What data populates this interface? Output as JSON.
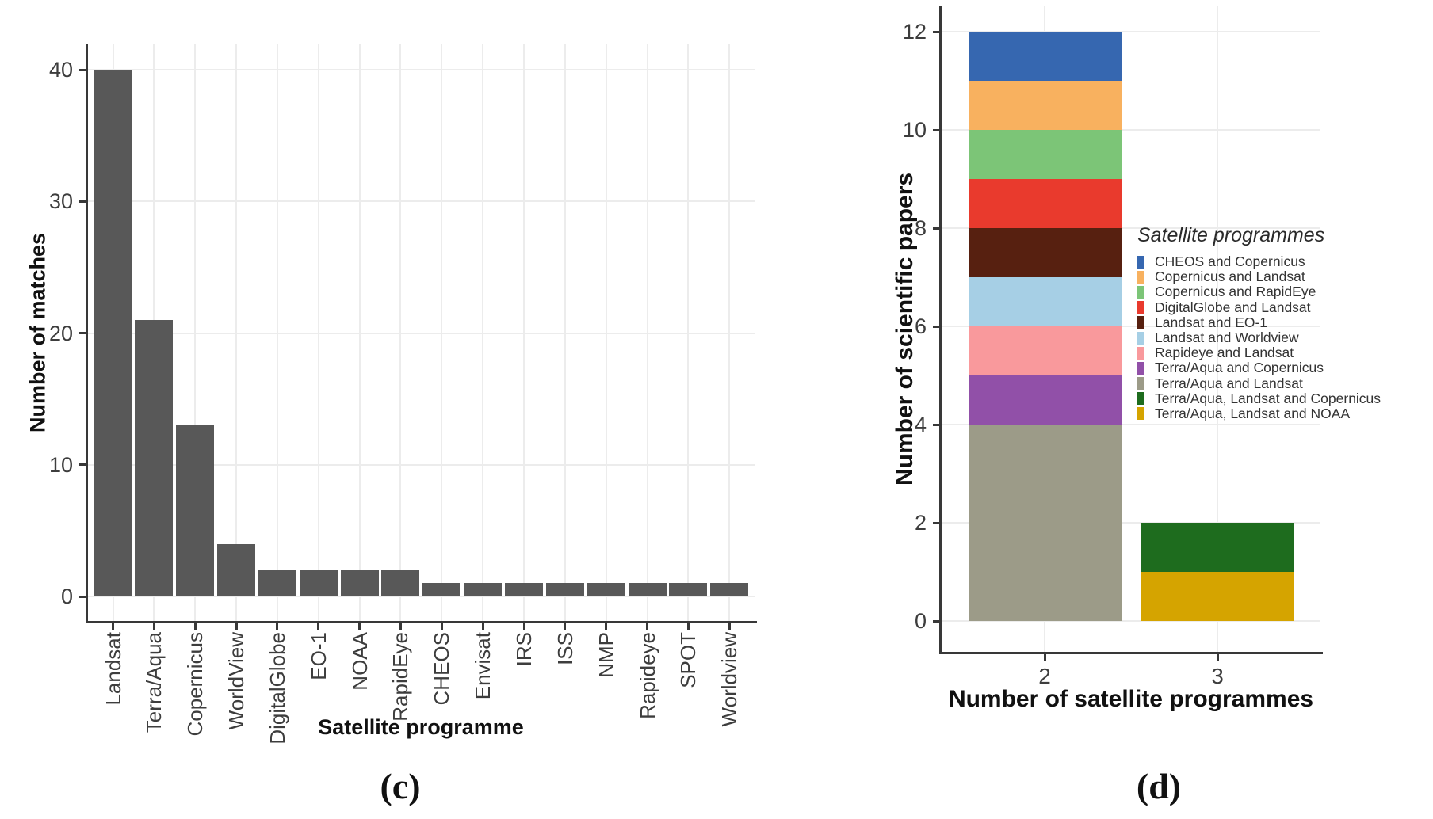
{
  "figure": {
    "caption_c": "(c)",
    "caption_d": "(d)",
    "background": "#ffffff"
  },
  "styles": {
    "axis_line_color": "#383838",
    "gridline_color": "#ececec",
    "tick_label_color": "#3d3d3d",
    "title_color": "#111111"
  },
  "chart_data": [
    {
      "id": "c",
      "type": "bar",
      "title": "",
      "xlabel": "Satellite programme",
      "ylabel": "Number of matches",
      "categories": [
        "Landsat",
        "Terra/Aqua",
        "Copernicus",
        "WorldView",
        "DigitalGlobe",
        "EO-1",
        "NOAA",
        "RapidEye",
        "CHEOS",
        "Envisat",
        "IRS",
        "ISS",
        "NMP",
        "Rapideye",
        "SPOT",
        "Worldview"
      ],
      "values": [
        40,
        21,
        13,
        4,
        2,
        2,
        2,
        2,
        1,
        1,
        1,
        1,
        1,
        1,
        1,
        1
      ],
      "yticks": [
        0,
        10,
        20,
        30,
        40
      ],
      "ylim": [
        0,
        42
      ],
      "grid": true,
      "bar_color": "#585858"
    },
    {
      "id": "d",
      "type": "stacked-bar",
      "title": "",
      "xlabel": "Number of satellite programmes",
      "ylabel": "Number of scientific papers",
      "categories": [
        "2",
        "3"
      ],
      "yticks": [
        0,
        2,
        4,
        6,
        8,
        10,
        12
      ],
      "ylim": [
        0,
        12.6
      ],
      "grid": true,
      "legend_title": "Satellite programmes",
      "legend_position": "right-inside",
      "series": [
        {
          "name": "CHEOS and Copernicus",
          "color": "#3667b0",
          "values": [
            1,
            0
          ]
        },
        {
          "name": "Copernicus and Landsat",
          "color": "#f8b15f",
          "values": [
            1,
            0
          ]
        },
        {
          "name": "Copernicus and RapidEye",
          "color": "#7cc577",
          "values": [
            1,
            0
          ]
        },
        {
          "name": "DigitalGlobe and Landsat",
          "color": "#e93a2d",
          "values": [
            1,
            0
          ]
        },
        {
          "name": "Landsat and EO-1",
          "color": "#572010",
          "values": [
            1,
            0
          ]
        },
        {
          "name": "Landsat and Worldview",
          "color": "#a6cfe5",
          "values": [
            1,
            0
          ]
        },
        {
          "name": "Rapideye and Landsat",
          "color": "#f9999c",
          "values": [
            1,
            0
          ]
        },
        {
          "name": "Terra/Aqua and Copernicus",
          "color": "#9150a8",
          "values": [
            1,
            0
          ]
        },
        {
          "name": "Terra/Aqua and Landsat",
          "color": "#9c9b88",
          "values": [
            4,
            0
          ]
        },
        {
          "name": "Terra/Aqua, Landsat and Copernicus",
          "color": "#1e6c1e",
          "values": [
            0,
            1
          ]
        },
        {
          "name": "Terra/Aqua, Landsat and NOAA",
          "color": "#d5a400",
          "values": [
            0,
            1
          ]
        }
      ]
    }
  ]
}
